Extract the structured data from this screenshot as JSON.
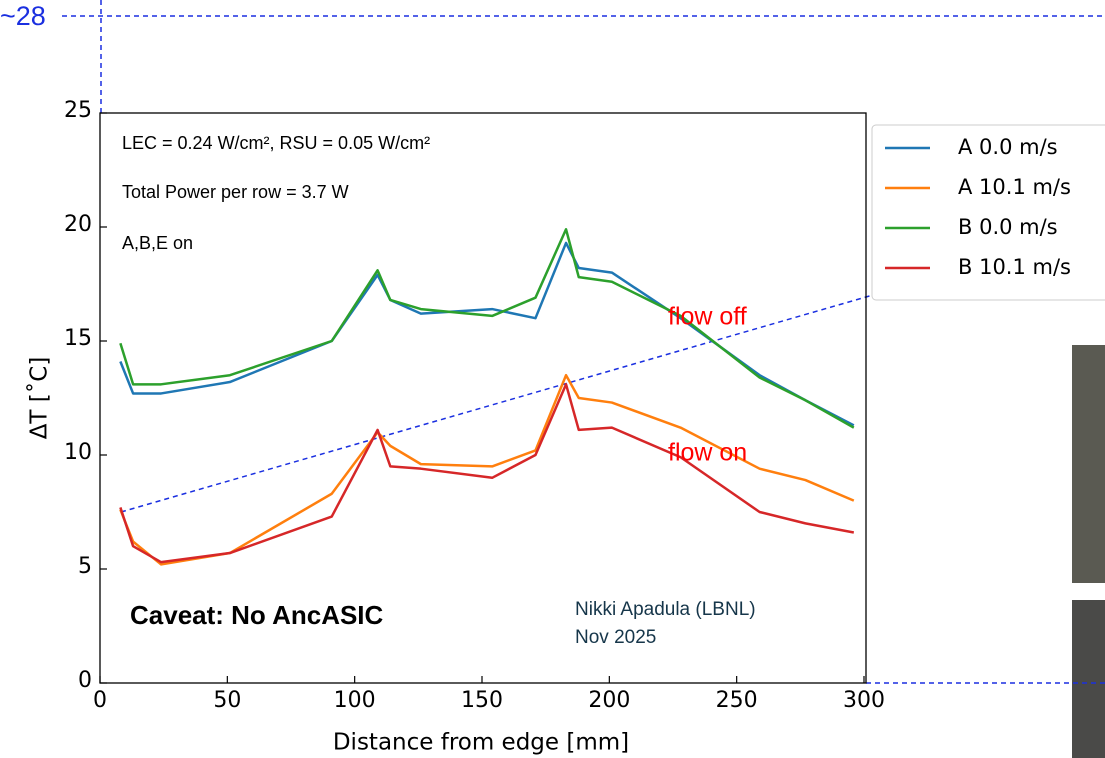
{
  "chart_data": {
    "type": "line",
    "x_label": "Distance from edge [mm]",
    "y_label": "ΔT [˚C]",
    "x": [
      8,
      13,
      24,
      51,
      91,
      109,
      114,
      126,
      154,
      171,
      183,
      188,
      201,
      228,
      259,
      277,
      296
    ],
    "series": [
      {
        "name": "A 0.0 m/s",
        "color": "#1f77b4",
        "values": [
          14.1,
          12.7,
          12.7,
          13.2,
          15.0,
          17.9,
          16.8,
          16.2,
          16.4,
          16.0,
          19.3,
          18.2,
          18.0,
          16.0,
          13.5,
          12.4,
          11.3
        ]
      },
      {
        "name": "A 10.1 m/s",
        "color": "#ff7f0e",
        "values": [
          7.6,
          6.2,
          5.2,
          5.7,
          8.3,
          11.0,
          10.4,
          9.6,
          9.5,
          10.2,
          13.5,
          12.5,
          12.3,
          11.2,
          9.4,
          8.9,
          8.0
        ]
      },
      {
        "name": "B 0.0 m/s",
        "color": "#2ca02c",
        "values": [
          14.9,
          13.1,
          13.1,
          13.5,
          15.0,
          18.1,
          16.8,
          16.4,
          16.1,
          16.9,
          19.9,
          17.8,
          17.6,
          16.1,
          13.4,
          12.4,
          11.2
        ]
      },
      {
        "name": "B 10.1 m/s",
        "color": "#d62728",
        "values": [
          7.7,
          6.0,
          5.3,
          5.7,
          7.3,
          11.1,
          9.5,
          9.4,
          9.0,
          10.0,
          13.1,
          11.1,
          11.2,
          9.9,
          7.5,
          7.0,
          6.6
        ]
      }
    ],
    "xlim": [
      0,
      300
    ],
    "xticks": [
      0,
      50,
      100,
      150,
      200,
      250,
      300
    ],
    "ylim": [
      0,
      25
    ],
    "yticks": [
      0,
      5,
      10,
      15,
      20,
      25
    ],
    "grid": false,
    "legend": "outside-right",
    "annotations": [
      "LEC = 0.24 W/cm², RSU = 0.05 W/cm²",
      "Total Power per row = 3.7 W",
      "A,B,E on",
      "Caveat:  No AncASIC",
      "Nikki Apadula (LBNL)",
      "Nov 2025",
      "flow off",
      "flow on",
      "~28"
    ]
  }
}
